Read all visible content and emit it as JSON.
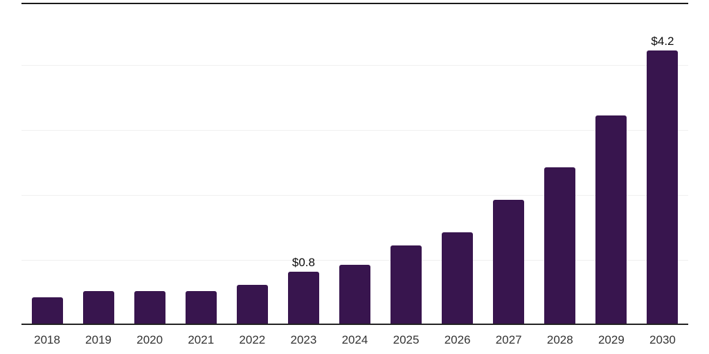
{
  "chart_data": {
    "type": "bar",
    "title": "",
    "xlabel": "",
    "ylabel": "",
    "categories": [
      "2018",
      "2019",
      "2020",
      "2021",
      "2022",
      "2023",
      "2024",
      "2025",
      "2026",
      "2027",
      "2028",
      "2029",
      "2030"
    ],
    "values": [
      0.4,
      0.5,
      0.5,
      0.5,
      0.6,
      0.8,
      0.9,
      1.2,
      1.4,
      1.9,
      2.4,
      3.2,
      4.2
    ],
    "value_labels": {
      "2023": "$0.8",
      "2030": "$4.2"
    },
    "unit_prefix": "$",
    "ylim": [
      0,
      5
    ],
    "gridlines_y": [
      1,
      2,
      3,
      4
    ],
    "grid": "horizontal-faint",
    "legend": "none",
    "axis": "x-axis-only-no-y-tick-labels"
  },
  "style": {
    "bar_color": "#38154e",
    "axis_line_color": "#222222",
    "top_rule_color": "#1a1a1a",
    "gridline_color": "#f0f0f0",
    "tick_label_color": "#333333",
    "value_label_color": "#0a0a0a",
    "background_color": "#ffffff"
  }
}
